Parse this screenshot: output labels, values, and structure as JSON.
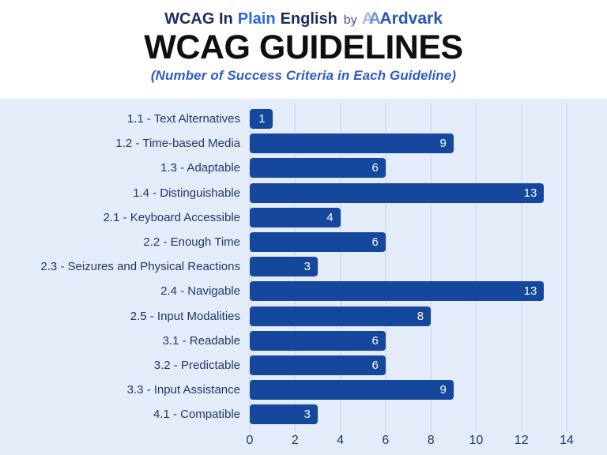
{
  "header": {
    "brand": {
      "prefix": "WCAG In",
      "highlight": "Plain",
      "suffix": "English",
      "by": "by",
      "logo_a1": "A",
      "logo_a2": "A",
      "logo_name": "Ardvark"
    },
    "title": "WCAG GUIDELINES",
    "subtitle": "(Number of Success Criteria in Each Guideline)"
  },
  "chart_data": {
    "type": "bar",
    "orientation": "horizontal",
    "title": "WCAG GUIDELINES",
    "subtitle": "(Number of Success Criteria in Each Guideline)",
    "categories": [
      "1.1 - Text Alternatives",
      "1.2 - Time-based Media",
      "1.3 - Adaptable",
      "1.4 - Distinguishable",
      "2.1 - Keyboard Accessible",
      "2.2 - Enough Time",
      "2.3 - Seizures and Physical Reactions",
      "2.4 - Navigable",
      "2.5 - Input Modalities",
      "3.1 - Readable",
      "3.2 - Predictable",
      "3.3 - Input Assistance",
      "4.1 - Compatible"
    ],
    "values": [
      1,
      9,
      6,
      13,
      4,
      6,
      3,
      13,
      8,
      6,
      6,
      9,
      3
    ],
    "xlim": [
      0,
      14
    ],
    "xticks": [
      0,
      2,
      4,
      6,
      8,
      10,
      12,
      14
    ],
    "grid": "vertical",
    "legend": false,
    "value_labels": "inside-end"
  },
  "colors": {
    "bar": "#15489D",
    "chart_bg": "#E4ECF9",
    "gridline": "#C9D5EB",
    "label_text": "#21386B",
    "tick_text": "#1E3564",
    "title": "#0F0F0F",
    "subtitle": "#2E5CC6",
    "brand_navy": "#1B2C5E",
    "brand_blue": "#2A66E8",
    "by_text": "#44538C",
    "logo_a1": "#A4BCE6",
    "logo_a2": "#6E94D8",
    "logo_name": "#2B55B2"
  }
}
